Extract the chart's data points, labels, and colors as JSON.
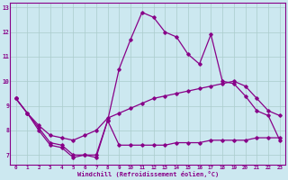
{
  "xlabel": "Windchill (Refroidissement éolien,°C)",
  "bg_color": "#cce8f0",
  "line_color": "#880088",
  "grid_color": "#aacccc",
  "xlim": [
    -0.5,
    23.5
  ],
  "ylim": [
    6.6,
    13.2
  ],
  "xticks": [
    0,
    1,
    2,
    3,
    4,
    5,
    6,
    7,
    8,
    9,
    10,
    11,
    12,
    13,
    14,
    15,
    16,
    17,
    18,
    19,
    20,
    21,
    22,
    23
  ],
  "yticks": [
    7,
    8,
    9,
    10,
    11,
    12,
    13
  ],
  "line1_x": [
    0,
    1,
    2,
    3,
    4,
    5,
    6,
    7,
    8,
    9,
    10,
    11,
    12,
    13,
    14,
    15,
    16,
    17,
    18,
    19,
    20,
    21,
    22,
    23
  ],
  "line1_y": [
    9.3,
    8.7,
    8.0,
    7.4,
    7.3,
    6.9,
    7.0,
    6.9,
    8.4,
    7.4,
    7.4,
    7.4,
    7.4,
    7.4,
    7.5,
    7.5,
    7.5,
    7.6,
    7.6,
    7.6,
    7.6,
    7.7,
    7.7,
    7.7
  ],
  "line2_x": [
    0,
    1,
    2,
    3,
    4,
    5,
    6,
    7,
    8,
    9,
    10,
    11,
    12,
    13,
    14,
    15,
    16,
    17,
    18,
    19,
    20,
    21,
    22,
    23
  ],
  "line2_y": [
    9.3,
    8.7,
    8.2,
    7.8,
    7.7,
    7.6,
    7.8,
    8.0,
    8.5,
    8.7,
    8.9,
    9.1,
    9.3,
    9.4,
    9.5,
    9.6,
    9.7,
    9.8,
    9.9,
    10.0,
    9.8,
    9.3,
    8.8,
    8.6
  ],
  "line3_x": [
    0,
    1,
    2,
    3,
    4,
    5,
    6,
    7,
    8,
    9,
    10,
    11,
    12,
    13,
    14,
    15,
    16,
    17,
    18,
    19,
    20,
    21,
    22,
    23
  ],
  "line3_y": [
    9.3,
    8.7,
    8.1,
    7.5,
    7.4,
    7.0,
    7.0,
    7.0,
    8.4,
    10.5,
    11.7,
    12.8,
    12.6,
    12.0,
    11.8,
    11.1,
    10.7,
    11.9,
    10.0,
    9.9,
    9.4,
    8.8,
    8.6,
    7.6
  ],
  "tick_fontsize": 4.2,
  "label_fontsize": 5.0
}
